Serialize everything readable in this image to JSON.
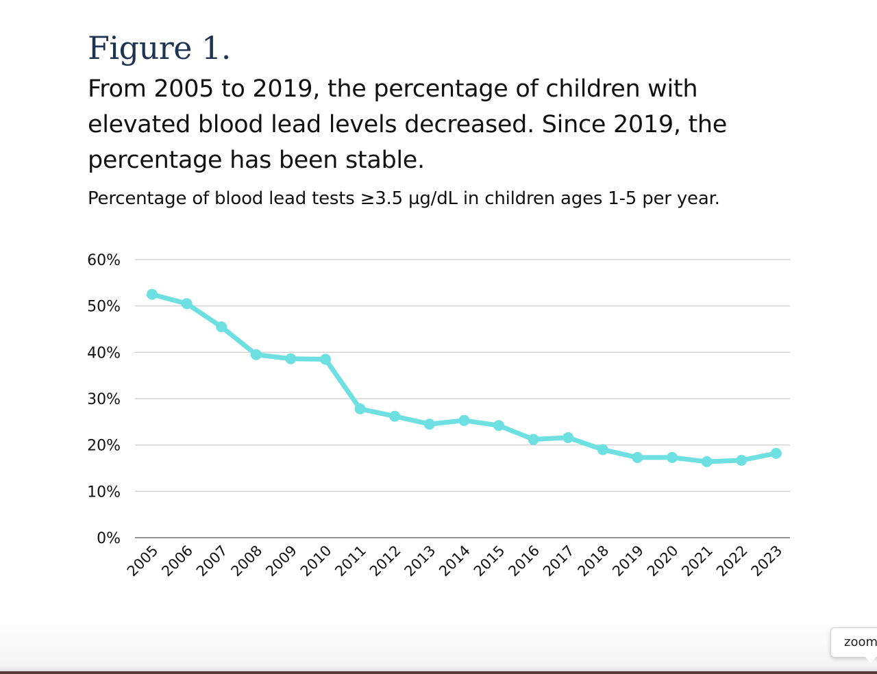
{
  "figure_label": "Figure 1.",
  "headline": "From 2005 to 2019, the percentage of children with elevated blood lead levels decreased. Since 2019, the percentage has been stable.",
  "tooltip_text": "zoom",
  "colors": {
    "line": "#6ee0e2",
    "title": "#1e3352",
    "grid": "#c8c8c8",
    "axis": "#6e6e6e"
  },
  "chart_data": {
    "type": "line",
    "title": "Percentage of blood lead tests ≥3.5 µg/dL in children ages 1-5 per year.",
    "xlabel": "",
    "ylabel": "",
    "ylim": [
      0,
      60
    ],
    "yticks": [
      "0%",
      "10%",
      "20%",
      "30%",
      "40%",
      "50%",
      "60%"
    ],
    "grid": true,
    "categories": [
      "2005",
      "2006",
      "2007",
      "2008",
      "2009",
      "2010",
      "2011",
      "2012",
      "2013",
      "2014",
      "2015",
      "2016",
      "2017",
      "2018",
      "2019",
      "2020",
      "2021",
      "2022",
      "2023"
    ],
    "series": [
      {
        "values": [
          52.5,
          50.5,
          45.5,
          39.5,
          38.6,
          38.5,
          27.8,
          26.2,
          24.5,
          25.3,
          24.2,
          21.2,
          21.6,
          19.0,
          17.3,
          17.3,
          16.4,
          16.7,
          18.2
        ]
      }
    ]
  }
}
